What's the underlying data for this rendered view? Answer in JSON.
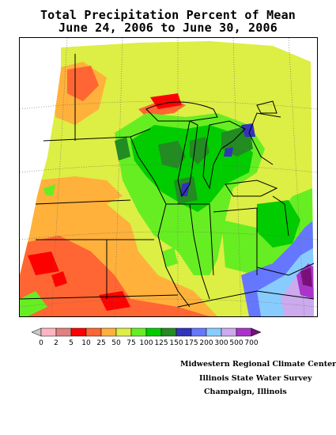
{
  "title": {
    "line1": "Total Precipitation Percent of Mean",
    "line2": "June 24, 2006 to June 30, 2006"
  },
  "legend": {
    "labels": [
      "0",
      "2",
      "5",
      "10",
      "25",
      "50",
      "75",
      "100",
      "125",
      "150",
      "175",
      "200",
      "300",
      "500",
      "700"
    ],
    "colors": [
      "#c8c8c8",
      "#ffb6c1",
      "#e08080",
      "#ff0000",
      "#ff6633",
      "#ffb13b",
      "#ddee44",
      "#66ee22",
      "#00cc00",
      "#228b22",
      "#3333bb",
      "#6677ff",
      "#88ccff",
      "#ccaaee",
      "#aa33cc",
      "#771177"
    ]
  },
  "credits": {
    "line1": "Midwestern Regional Climate Center",
    "line2": "Illinois State Water Survey",
    "line3": "Champaign, Illinois"
  }
}
